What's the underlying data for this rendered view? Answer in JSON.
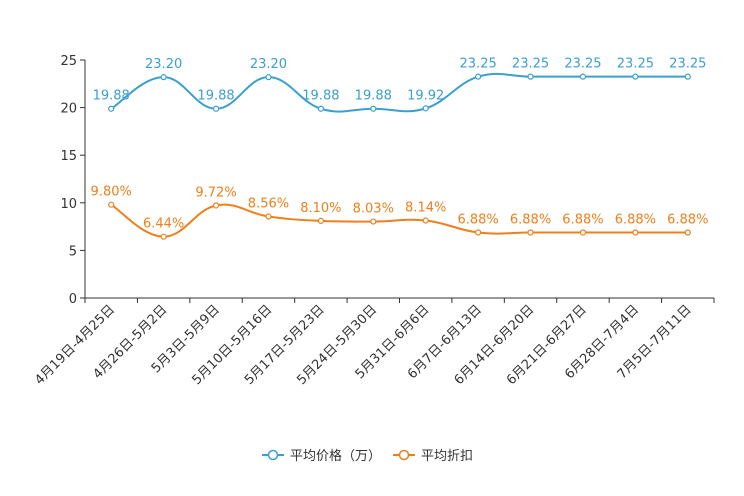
{
  "chart_data": {
    "type": "line",
    "title": "",
    "xlabel": "",
    "ylabel": "",
    "ylim": [
      0,
      25
    ],
    "yticks": [
      0,
      5,
      10,
      15,
      20,
      25
    ],
    "grid": false,
    "legend_position": "bottom-center",
    "categories": [
      "4月19日-4月25日",
      "4月26日-5月2日",
      "5月3日-5月9日",
      "5月10日-5月16日",
      "5月17日-5月23日",
      "5月24日-5月30日",
      "5月31日-6月6日",
      "6月7日-6月13日",
      "6月14日-6月20日",
      "6月21日-6月27日",
      "6月28日-7月4日",
      "7月5日-7月11日"
    ],
    "series": [
      {
        "name": "平均价格（万）",
        "color": "#3b9fcf",
        "values": [
          19.88,
          23.2,
          19.88,
          23.2,
          19.88,
          19.88,
          19.92,
          23.25,
          23.25,
          23.25,
          23.25,
          23.25
        ],
        "labels": [
          "19.88",
          "23.20",
          "19.88",
          "23.20",
          "19.88",
          "19.88",
          "19.92",
          "23.25",
          "23.25",
          "23.25",
          "23.25",
          "23.25"
        ]
      },
      {
        "name": "平均折扣",
        "color": "#f07f1b",
        "values": [
          9.8,
          6.44,
          9.72,
          8.56,
          8.1,
          8.03,
          8.14,
          6.88,
          6.88,
          6.88,
          6.88,
          6.88
        ],
        "labels": [
          "9.80%",
          "6.44%",
          "9.72%",
          "8.56%",
          "8.10%",
          "8.03%",
          "8.14%",
          "6.88%",
          "6.88%",
          "6.88%",
          "6.88%",
          "6.88%"
        ]
      }
    ]
  }
}
